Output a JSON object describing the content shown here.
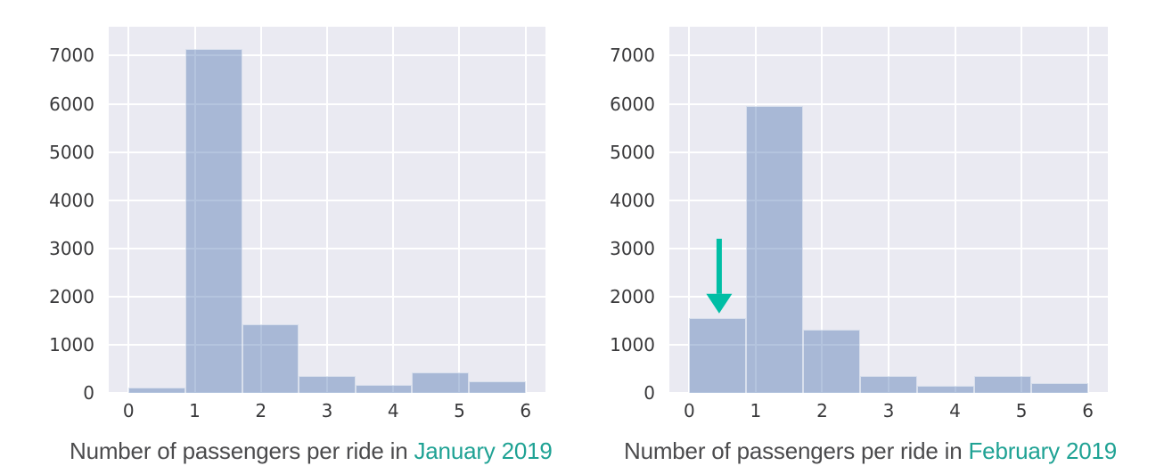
{
  "page": {
    "background": "#ffffff"
  },
  "styles": {
    "plot_bg": "#eaeaf2",
    "grid": "#ffffff",
    "bar_fill": "rgba(76,114,176,0.42)",
    "bar_edge": "rgba(255,255,255,0.55)",
    "tick_color": "#39393b",
    "caption_color": "#4b4b4d",
    "caption_highlight": "#1fa294",
    "arrow_color": "#00bea5"
  },
  "chart_data": [
    {
      "type": "bar",
      "subtype": "histogram",
      "caption": {
        "prefix": "Number of passengers per ride in ",
        "highlight": "January 2019"
      },
      "bin_edges": [
        0,
        0.857,
        1.714,
        2.571,
        3.429,
        4.286,
        5.143,
        6
      ],
      "counts": [
        120,
        7130,
        1430,
        360,
        170,
        420,
        240
      ],
      "x_ticks": [
        0,
        1,
        2,
        3,
        4,
        5,
        6
      ],
      "y_ticks": [
        0,
        1000,
        2000,
        3000,
        4000,
        5000,
        6000,
        7000
      ],
      "xlim": [
        -0.3,
        6.3
      ],
      "ylim": [
        0,
        7600
      ],
      "xlabel": "",
      "ylabel": "",
      "grid": true,
      "legend": false
    },
    {
      "type": "bar",
      "subtype": "histogram",
      "caption": {
        "prefix": "Number of passengers per ride in ",
        "highlight": "February 2019"
      },
      "bin_edges": [
        0,
        0.857,
        1.714,
        2.571,
        3.429,
        4.286,
        5.143,
        6
      ],
      "counts": [
        1550,
        5950,
        1320,
        360,
        150,
        360,
        210
      ],
      "x_ticks": [
        0,
        1,
        2,
        3,
        4,
        5,
        6
      ],
      "y_ticks": [
        0,
        1000,
        2000,
        3000,
        4000,
        5000,
        6000,
        7000
      ],
      "xlim": [
        -0.3,
        6.3
      ],
      "ylim": [
        0,
        7600
      ],
      "xlabel": "",
      "ylabel": "",
      "grid": true,
      "legend": false,
      "annotation": {
        "shape": "down-arrow",
        "x": 0.45,
        "y_start": 3200,
        "y_end": 1650,
        "color": "#00bea5"
      }
    }
  ]
}
